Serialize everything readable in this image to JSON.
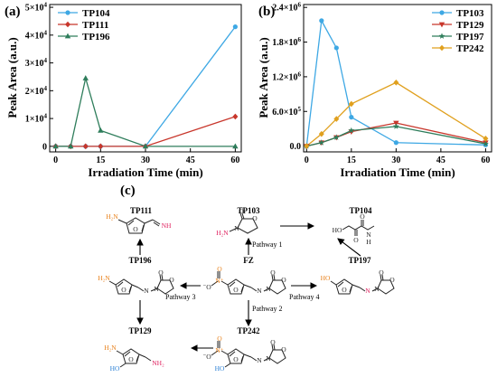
{
  "chart_data": [
    {
      "panel": "(a)",
      "type": "line",
      "xlabel": "Irradiation Time (min)",
      "ylabel": "Peak Area (a.u.)",
      "x_ticks": [
        0,
        15,
        30,
        45,
        60
      ],
      "xlim": [
        -2,
        62
      ],
      "ylim": [
        -2000,
        51000
      ],
      "y_tick_values": [
        0,
        10000,
        20000,
        30000,
        40000,
        50000
      ],
      "y_tick_labels": [
        {
          "mantissa": "0",
          "exp": ""
        },
        {
          "mantissa": "1×10",
          "exp": "4"
        },
        {
          "mantissa": "2×10",
          "exp": "4"
        },
        {
          "mantissa": "3×10",
          "exp": "4"
        },
        {
          "mantissa": "4×10",
          "exp": "4"
        },
        {
          "mantissa": "5×10",
          "exp": "4"
        }
      ],
      "legend_position": "top-left",
      "series": [
        {
          "name": "TP104",
          "color": "#3ea8e4",
          "marker": "circle",
          "x": [
            0,
            5,
            10,
            15,
            30,
            60
          ],
          "y": [
            0,
            0,
            0,
            0,
            0,
            43000
          ]
        },
        {
          "name": "TP111",
          "color": "#c8362b",
          "marker": "diamond",
          "x": [
            0,
            5,
            10,
            15,
            30,
            60
          ],
          "y": [
            0,
            0,
            0,
            0,
            0,
            10700
          ]
        },
        {
          "name": "TP196",
          "color": "#2e7d5b",
          "marker": "triangle",
          "x": [
            0,
            5,
            10,
            15,
            30,
            60
          ],
          "y": [
            0,
            0,
            24500,
            5700,
            0,
            0
          ]
        }
      ]
    },
    {
      "panel": "(b)",
      "type": "line",
      "xlabel": "Irradiation Time (min)",
      "ylabel": "Peak Area (a.u.)",
      "x_ticks": [
        0,
        15,
        30,
        45,
        60
      ],
      "xlim": [
        -1,
        62
      ],
      "ylim": [
        -100000,
        2450000
      ],
      "y_tick_values": [
        0,
        600000,
        1200000,
        1800000,
        2400000
      ],
      "y_tick_labels": [
        {
          "mantissa": "0.0",
          "exp": ""
        },
        {
          "mantissa": "6.0×10",
          "exp": "5"
        },
        {
          "mantissa": "1.2×10",
          "exp": "6"
        },
        {
          "mantissa": "1.8×10",
          "exp": "6"
        },
        {
          "mantissa": "2.4×10",
          "exp": "6"
        }
      ],
      "legend_position": "top-right",
      "series": [
        {
          "name": "TP103",
          "color": "#3ea8e4",
          "marker": "circle",
          "x": [
            0,
            5,
            10,
            15,
            30,
            60
          ],
          "y": [
            0,
            2170000,
            1700000,
            500000,
            60000,
            20000
          ]
        },
        {
          "name": "TP129",
          "color": "#c8362b",
          "marker": "triangle-down",
          "x": [
            0,
            5,
            10,
            15,
            30,
            60
          ],
          "y": [
            0,
            60000,
            150000,
            250000,
            400000,
            60000
          ]
        },
        {
          "name": "TP197",
          "color": "#2e7d5b",
          "marker": "star",
          "x": [
            0,
            5,
            10,
            15,
            30,
            60
          ],
          "y": [
            0,
            60000,
            150000,
            270000,
            340000,
            40000
          ]
        },
        {
          "name": "TP242",
          "color": "#e0a01e",
          "marker": "diamond",
          "x": [
            0,
            5,
            10,
            15,
            30,
            60
          ],
          "y": [
            0,
            210000,
            470000,
            730000,
            1100000,
            130000
          ]
        }
      ]
    }
  ],
  "scheme": {
    "panel": "(c)",
    "labels": {
      "fz": "FZ",
      "tp111": "TP111",
      "tp103": "TP103",
      "tp104": "TP104",
      "tp196": "TP196",
      "tp197": "TP197",
      "tp129": "TP129",
      "tp242": "TP242"
    },
    "pathways": {
      "p1": "Pathway 1",
      "p2": "Pathway 2",
      "p3": "Pathway 3",
      "p4": "Pathway 4"
    },
    "atoms": {
      "o": "O",
      "n": "N",
      "nplus": "N⁺",
      "ominus": "⁻O",
      "h2n": "H₂N",
      "nh2": "NH₂",
      "nh": "NH",
      "ho": "HO",
      "h": "H"
    },
    "colors": {
      "orange": "#e8801a",
      "blue": "#2a7fd4",
      "pink": "#e0215f",
      "bond": "#222222"
    }
  }
}
